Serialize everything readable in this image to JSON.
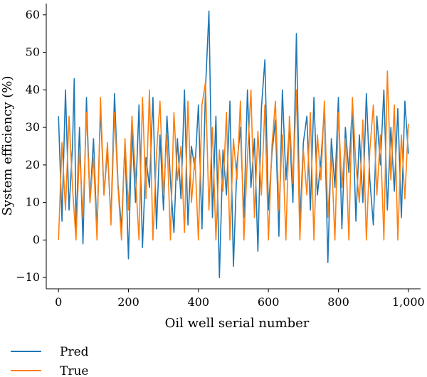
{
  "chart_data": {
    "type": "line",
    "xlabel": "Oil well serial number",
    "ylabel": "System efficiency (%)",
    "xlim": [
      -35,
      1035
    ],
    "ylim": [
      -13,
      63
    ],
    "x_ticks": [
      0,
      200,
      400,
      600,
      800,
      1000
    ],
    "x_tick_labels": [
      "0",
      "200",
      "400",
      "600",
      "800",
      "1,000"
    ],
    "y_ticks": [
      -10,
      0,
      10,
      20,
      30,
      40,
      50,
      60
    ],
    "y_tick_labels": [
      "−10",
      "0",
      "10",
      "20",
      "30",
      "40",
      "50",
      "60"
    ],
    "grid": false,
    "legend_position": "bottom-left, below plot",
    "series": [
      {
        "name": "Pred",
        "color": "#1f77b4",
        "x": [
          0,
          10,
          20,
          30,
          40,
          45,
          50,
          60,
          70,
          80,
          90,
          100,
          110,
          120,
          130,
          140,
          150,
          160,
          170,
          180,
          190,
          200,
          210,
          220,
          230,
          240,
          250,
          260,
          270,
          280,
          290,
          300,
          310,
          320,
          330,
          340,
          350,
          360,
          370,
          380,
          390,
          400,
          410,
          420,
          430,
          440,
          450,
          460,
          470,
          480,
          490,
          500,
          510,
          520,
          530,
          540,
          550,
          560,
          570,
          580,
          590,
          600,
          610,
          620,
          630,
          640,
          650,
          660,
          670,
          680,
          690,
          700,
          710,
          720,
          730,
          740,
          750,
          760,
          770,
          780,
          790,
          800,
          810,
          820,
          830,
          840,
          850,
          860,
          870,
          880,
          890,
          900,
          910,
          920,
          930,
          940,
          950,
          960,
          970,
          980,
          990,
          1000
        ],
        "values": [
          33,
          5,
          40,
          8,
          25,
          43,
          3,
          30,
          -1,
          38,
          10,
          27,
          2,
          35,
          12,
          24,
          5,
          39,
          15,
          3,
          26,
          -5,
          30,
          10,
          36,
          -2,
          22,
          14,
          38,
          3,
          28,
          8,
          33,
          16,
          2,
          27,
          11,
          40,
          4,
          25,
          19,
          36,
          3,
          40,
          61,
          6,
          33,
          -10,
          24,
          12,
          37,
          -7,
          20,
          30,
          6,
          40,
          14,
          27,
          -3,
          35,
          48,
          8,
          23,
          32,
          1,
          40,
          16,
          30,
          10,
          55,
          4,
          26,
          33,
          8,
          38,
          12,
          21,
          35,
          -6,
          27,
          14,
          38,
          3,
          30,
          18,
          36,
          5,
          28,
          10,
          39,
          16,
          4,
          33,
          20,
          40,
          8,
          30,
          13,
          35,
          6,
          37,
          23
        ]
      },
      {
        "name": "True",
        "color": "#ff7f0e",
        "x": [
          0,
          10,
          20,
          30,
          40,
          50,
          60,
          70,
          80,
          90,
          100,
          110,
          120,
          130,
          140,
          150,
          160,
          170,
          180,
          190,
          200,
          210,
          220,
          230,
          240,
          250,
          260,
          270,
          280,
          290,
          300,
          310,
          320,
          330,
          340,
          350,
          360,
          370,
          380,
          390,
          400,
          410,
          420,
          430,
          440,
          450,
          460,
          470,
          480,
          490,
          500,
          510,
          520,
          530,
          540,
          550,
          560,
          570,
          580,
          590,
          600,
          610,
          620,
          630,
          640,
          650,
          660,
          670,
          680,
          690,
          700,
          710,
          720,
          730,
          740,
          750,
          760,
          770,
          780,
          790,
          800,
          810,
          820,
          830,
          840,
          850,
          860,
          870,
          880,
          890,
          900,
          910,
          920,
          930,
          940,
          950,
          960,
          970,
          980,
          990,
          1000
        ],
        "values": [
          0,
          26,
          8,
          33,
          14,
          0,
          24,
          6,
          34,
          10,
          22,
          0,
          38,
          12,
          26,
          4,
          34,
          14,
          0,
          27,
          8,
          33,
          17,
          0,
          38,
          11,
          40,
          0,
          23,
          37,
          12,
          28,
          0,
          34,
          16,
          25,
          2,
          37,
          10,
          22,
          0,
          36,
          42,
          8,
          30,
          0,
          24,
          13,
          34,
          0,
          27,
          16,
          37,
          0,
          22,
          40,
          6,
          29,
          12,
          36,
          0,
          25,
          37,
          8,
          28,
          0,
          33,
          15,
          40,
          0,
          24,
          12,
          34,
          0,
          28,
          16,
          37,
          6,
          23,
          0,
          34,
          14,
          27,
          0,
          38,
          20,
          10,
          32,
          0,
          24,
          36,
          12,
          28,
          0,
          45,
          16,
          36,
          0,
          28,
          11,
          31
        ]
      }
    ]
  }
}
